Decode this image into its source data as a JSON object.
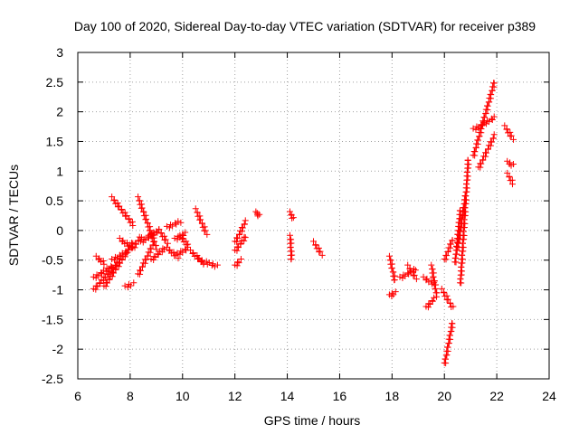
{
  "chart_data": {
    "type": "scatter",
    "title": "Day 100 of 2020, Sidereal Day-to-day VTEC variation (SDTVAR) for receiver p389",
    "xlabel": "GPS time / hours",
    "ylabel": "SDTVAR / TECUs",
    "xlim": [
      6,
      24
    ],
    "ylim": [
      -2.5,
      3
    ],
    "xticks": [
      "6",
      "8",
      "10",
      "12",
      "14",
      "16",
      "18",
      "20",
      "22",
      "24"
    ],
    "yticks": [
      "-2.5",
      "-2",
      "-1.5",
      "-1",
      "-0.5",
      "0",
      "0.5",
      "1",
      "1.5",
      "2",
      "2.5",
      "3"
    ],
    "marker": "+",
    "color": "#ff0000",
    "grid": true,
    "segments": [
      {
        "x0": 6.6,
        "y0": -1.0,
        "x1": 7.6,
        "y1": -0.5
      },
      {
        "x0": 6.6,
        "y0": -0.8,
        "x1": 7.3,
        "y1": -0.6
      },
      {
        "x0": 6.7,
        "y0": -0.45,
        "x1": 7.0,
        "y1": -0.55
      },
      {
        "x0": 7.0,
        "y0": -0.95,
        "x1": 8.1,
        "y1": -0.2
      },
      {
        "x0": 7.3,
        "y0": -0.5,
        "x1": 7.9,
        "y1": -0.35
      },
      {
        "x0": 7.3,
        "y0": 0.55,
        "x1": 8.1,
        "y1": 0.1
      },
      {
        "x0": 7.6,
        "y0": -0.15,
        "x1": 8.1,
        "y1": -0.3
      },
      {
        "x0": 7.8,
        "y0": -0.95,
        "x1": 8.1,
        "y1": -0.9
      },
      {
        "x0": 8.1,
        "y0": -0.3,
        "x1": 8.4,
        "y1": -0.1
      },
      {
        "x0": 8.3,
        "y0": 0.55,
        "x1": 9.0,
        "y1": -0.3
      },
      {
        "x0": 8.3,
        "y0": -0.75,
        "x1": 8.9,
        "y1": -0.2
      },
      {
        "x0": 8.4,
        "y0": -0.2,
        "x1": 8.9,
        "y1": -0.05
      },
      {
        "x0": 8.7,
        "y0": -0.1,
        "x1": 9.1,
        "y1": 0.0
      },
      {
        "x0": 8.8,
        "y0": -0.5,
        "x1": 9.3,
        "y1": -0.3
      },
      {
        "x0": 9.1,
        "y0": 0.0,
        "x1": 9.4,
        "y1": -0.2
      },
      {
        "x0": 9.4,
        "y0": 0.05,
        "x1": 9.9,
        "y1": 0.15
      },
      {
        "x0": 9.4,
        "y0": -0.3,
        "x1": 9.8,
        "y1": -0.45
      },
      {
        "x0": 9.7,
        "y0": -0.15,
        "x1": 10.1,
        "y1": -0.05
      },
      {
        "x0": 9.8,
        "y0": -0.4,
        "x1": 10.2,
        "y1": -0.3
      },
      {
        "x0": 9.9,
        "y0": -0.1,
        "x1": 10.2,
        "y1": -0.25
      },
      {
        "x0": 10.3,
        "y0": -0.35,
        "x1": 10.8,
        "y1": -0.55
      },
      {
        "x0": 10.5,
        "y0": 0.35,
        "x1": 10.9,
        "y1": -0.05
      },
      {
        "x0": 10.6,
        "y0": -0.5,
        "x1": 11.3,
        "y1": -0.6
      },
      {
        "x0": 12.0,
        "y0": -0.35,
        "x1": 12.4,
        "y1": -0.1
      },
      {
        "x0": 12.0,
        "y0": -0.2,
        "x1": 12.4,
        "y1": 0.15
      },
      {
        "x0": 12.0,
        "y0": -0.6,
        "x1": 12.2,
        "y1": -0.5
      },
      {
        "x0": 12.8,
        "y0": 0.3,
        "x1": 12.9,
        "y1": 0.25
      },
      {
        "x0": 14.1,
        "y0": 0.3,
        "x1": 14.2,
        "y1": 0.2
      },
      {
        "x0": 14.1,
        "y0": -0.1,
        "x1": 14.15,
        "y1": -0.5
      },
      {
        "x0": 15.0,
        "y0": -0.2,
        "x1": 15.3,
        "y1": -0.4
      },
      {
        "x0": 17.9,
        "y0": -0.45,
        "x1": 18.1,
        "y1": -0.85
      },
      {
        "x0": 17.9,
        "y0": -1.1,
        "x1": 18.1,
        "y1": -1.05
      },
      {
        "x0": 18.3,
        "y0": -0.8,
        "x1": 18.9,
        "y1": -0.65
      },
      {
        "x0": 18.6,
        "y0": -0.6,
        "x1": 18.9,
        "y1": -0.8
      },
      {
        "x0": 19.2,
        "y0": -0.8,
        "x1": 19.6,
        "y1": -0.9
      },
      {
        "x0": 19.3,
        "y0": -1.3,
        "x1": 19.6,
        "y1": -1.15
      },
      {
        "x0": 19.5,
        "y0": -0.6,
        "x1": 19.7,
        "y1": -1.1
      },
      {
        "x0": 19.9,
        "y0": -1.0,
        "x1": 20.3,
        "y1": -1.3
      },
      {
        "x0": 20.0,
        "y0": -0.5,
        "x1": 20.3,
        "y1": -0.15
      },
      {
        "x0": 20.0,
        "y0": -2.25,
        "x1": 20.3,
        "y1": -1.55
      },
      {
        "x0": 20.4,
        "y0": -0.55,
        "x1": 20.6,
        "y1": 0.35
      },
      {
        "x0": 20.6,
        "y0": -0.9,
        "x1": 20.9,
        "y1": 1.2
      },
      {
        "x0": 20.5,
        "y0": -0.3,
        "x1": 20.8,
        "y1": 0.6
      },
      {
        "x0": 21.1,
        "y0": 1.25,
        "x1": 21.9,
        "y1": 2.5
      },
      {
        "x0": 21.1,
        "y0": 1.7,
        "x1": 21.9,
        "y1": 1.9
      },
      {
        "x0": 21.3,
        "y0": 1.05,
        "x1": 21.9,
        "y1": 1.6
      },
      {
        "x0": 22.3,
        "y0": 1.75,
        "x1": 22.6,
        "y1": 1.55
      },
      {
        "x0": 22.4,
        "y0": 0.95,
        "x1": 22.6,
        "y1": 0.8
      },
      {
        "x0": 22.4,
        "y0": 1.15,
        "x1": 22.6,
        "y1": 1.1
      }
    ]
  }
}
